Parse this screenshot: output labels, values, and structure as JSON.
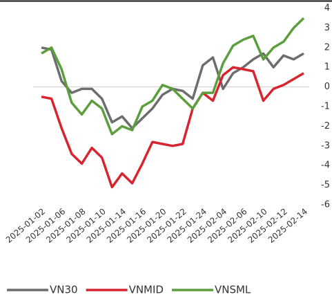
{
  "chart_data": {
    "type": "line",
    "categories": [
      "2025-01-02",
      null,
      "2025-01-06",
      null,
      "2025-01-08",
      null,
      "2025-01-10",
      null,
      "2025-01-14",
      null,
      "2025-01-16",
      null,
      "2025-01-20",
      null,
      "2025-01-22",
      null,
      "2025-01-24",
      null,
      "2025-02-04",
      null,
      "2025-02-06",
      null,
      "2025-02-10",
      null,
      "2025-02-12",
      null,
      "2025-02-14"
    ],
    "series": [
      {
        "name": "VN30",
        "color": "#6d6d6d",
        "values": [
          2.0,
          1.9,
          0.3,
          -0.3,
          -0.1,
          -0.1,
          -0.6,
          -1.8,
          -1.5,
          -2.1,
          -1.6,
          -1.1,
          -0.4,
          -0.1,
          -0.2,
          -0.6,
          1.1,
          1.5,
          -0.1,
          0.7,
          1.0,
          1.4,
          1.7,
          1.0,
          1.6,
          1.4,
          1.7
        ]
      },
      {
        "name": "VNMID",
        "color": "#d7242f",
        "values": [
          -0.5,
          -0.6,
          -2.1,
          -3.4,
          -3.9,
          -3.1,
          -3.6,
          -5.1,
          -4.4,
          -4.9,
          -3.9,
          -2.8,
          -2.9,
          -3.0,
          -2.9,
          -1.1,
          -0.3,
          -0.7,
          0.6,
          1.0,
          0.9,
          0.8,
          -0.7,
          -0.1,
          0.1,
          0.4,
          0.7
        ]
      },
      {
        "name": "VNSML",
        "color": "#5c9e3e",
        "values": [
          1.7,
          2.0,
          0.9,
          -0.8,
          -1.4,
          -0.7,
          -1.1,
          -2.4,
          -2.0,
          -2.2,
          -1.0,
          -0.7,
          0.1,
          -0.1,
          -0.6,
          -1.1,
          -0.3,
          -0.3,
          1.2,
          2.1,
          2.4,
          2.6,
          1.4,
          2.0,
          2.3,
          3.0,
          3.5
        ]
      }
    ],
    "ylim": [
      -6,
      4
    ],
    "yticks": [
      -6,
      -5,
      -4,
      -3,
      -2,
      -1,
      0,
      1,
      2,
      3,
      4
    ],
    "legend": "bottom"
  }
}
